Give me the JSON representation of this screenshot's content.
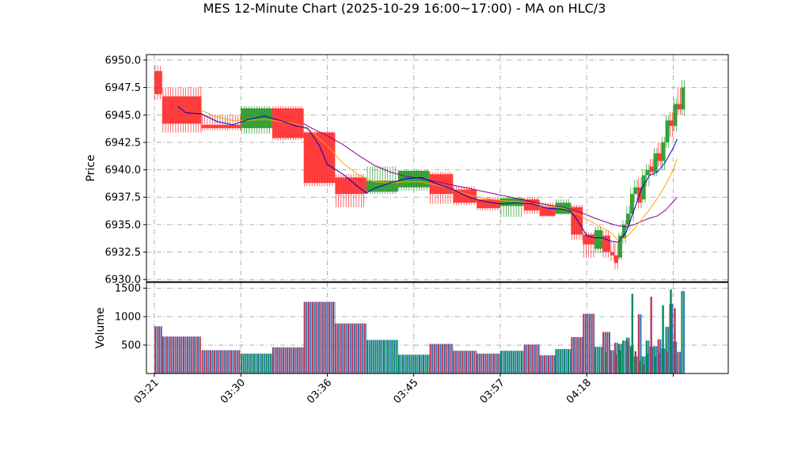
{
  "chart_data": {
    "type": "candlestick",
    "title": "MES 12-Minute Chart (2025-10-29 16:00~17:00) - MA on HLC/3",
    "price_panel": {
      "ylabel": "Price",
      "ylim": [
        6929.8,
        6950.5
      ],
      "yticks": [
        "6930.0",
        "6932.5",
        "6935.0",
        "6937.5",
        "6940.0",
        "6942.5",
        "6945.0",
        "6947.5",
        "6950.0"
      ]
    },
    "volume_panel": {
      "ylabel": "Volume",
      "ylim": [
        0,
        1600
      ],
      "yticks": [
        "500",
        "1000",
        "1500"
      ]
    },
    "xlim": [
      -1,
      73
    ],
    "xticks": [
      {
        "label": "03:21",
        "index": 0
      },
      {
        "label": "03:30",
        "index": 11
      },
      {
        "label": "03:36",
        "index": 22
      },
      {
        "label": "03:45",
        "index": 33
      },
      {
        "label": "03:57",
        "index": 44
      },
      {
        "label": "04:18",
        "index": 55
      },
      {
        "label": "",
        "index": 66
      }
    ],
    "grid": true,
    "colors": {
      "up": "#2a9a2a",
      "down": "#ff3030",
      "ma_fast": "#0000cc",
      "ma_mid": "#ffa500",
      "ma_slow": "#8b008b",
      "volume_up": "#008a5a",
      "volume_down": "#b23a5a",
      "grid": "#b0b0b0"
    },
    "candles": [
      {
        "start": 0,
        "end": 1,
        "open": 6949.0,
        "high": 6949.5,
        "low": 6946.4,
        "close": 6946.9,
        "volume": 830
      },
      {
        "start": 1,
        "end": 6,
        "open": 6946.7,
        "high": 6947.5,
        "low": 6943.4,
        "close": 6944.2,
        "volume": 650
      },
      {
        "start": 6,
        "end": 11,
        "open": 6944.1,
        "high": 6945.0,
        "low": 6943.6,
        "close": 6943.8,
        "volume": 410
      },
      {
        "start": 11,
        "end": 15,
        "open": 6943.8,
        "high": 6945.8,
        "low": 6943.3,
        "close": 6945.6,
        "volume": 350
      },
      {
        "start": 15,
        "end": 19,
        "open": 6945.6,
        "high": 6945.8,
        "low": 6942.7,
        "close": 6942.9,
        "volume": 460
      },
      {
        "start": 19,
        "end": 23,
        "open": 6943.4,
        "high": 6943.5,
        "low": 6938.5,
        "close": 6938.8,
        "volume": 1260
      },
      {
        "start": 23,
        "end": 27,
        "open": 6939.3,
        "high": 6939.6,
        "low": 6936.6,
        "close": 6937.8,
        "volume": 880
      },
      {
        "start": 27,
        "end": 31,
        "open": 6938.0,
        "high": 6940.3,
        "low": 6937.8,
        "close": 6939.0,
        "volume": 590
      },
      {
        "start": 31,
        "end": 35,
        "open": 6938.4,
        "high": 6940.0,
        "low": 6938.1,
        "close": 6939.9,
        "volume": 330
      },
      {
        "start": 35,
        "end": 38,
        "open": 6939.6,
        "high": 6939.8,
        "low": 6936.9,
        "close": 6937.8,
        "volume": 520
      },
      {
        "start": 38,
        "end": 41,
        "open": 6938.2,
        "high": 6938.5,
        "low": 6936.8,
        "close": 6937.0,
        "volume": 400
      },
      {
        "start": 41,
        "end": 44,
        "open": 6937.3,
        "high": 6937.5,
        "low": 6936.3,
        "close": 6936.5,
        "volume": 350
      },
      {
        "start": 44,
        "end": 47,
        "open": 6936.7,
        "high": 6937.5,
        "low": 6935.7,
        "close": 6937.4,
        "volume": 400
      },
      {
        "start": 47,
        "end": 49,
        "open": 6937.3,
        "high": 6937.5,
        "low": 6936.0,
        "close": 6936.3,
        "volume": 510
      },
      {
        "start": 49,
        "end": 51,
        "open": 6936.6,
        "high": 6937.0,
        "low": 6935.7,
        "close": 6935.8,
        "volume": 320
      },
      {
        "start": 51,
        "end": 53,
        "open": 6936.0,
        "high": 6937.3,
        "low": 6935.9,
        "close": 6937.0,
        "volume": 430
      },
      {
        "start": 53,
        "end": 54.5,
        "open": 6936.6,
        "high": 6936.8,
        "low": 6933.6,
        "close": 6934.1,
        "volume": 640
      },
      {
        "start": 54.5,
        "end": 56,
        "open": 6934.1,
        "high": 6934.3,
        "low": 6932.0,
        "close": 6933.2,
        "volume": 1050
      },
      {
        "start": 56,
        "end": 57,
        "open": 6932.8,
        "high": 6934.8,
        "low": 6932.4,
        "close": 6934.5,
        "volume": 470
      },
      {
        "start": 57,
        "end": 58,
        "open": 6934.0,
        "high": 6934.5,
        "low": 6932.0,
        "close": 6932.5,
        "volume": 730
      },
      {
        "start": 58,
        "end": 58.5,
        "open": 6932.5,
        "high": 6933.5,
        "low": 6931.7,
        "close": 6932.2,
        "volume": 410
      },
      {
        "start": 58.5,
        "end": 59,
        "open": 6932.2,
        "high": 6933.3,
        "low": 6930.9,
        "close": 6931.5,
        "volume": 540
      },
      {
        "start": 59,
        "end": 59.5,
        "open": 6932.0,
        "high": 6934.3,
        "low": 6931.8,
        "close": 6934.0,
        "volume": 520
      },
      {
        "start": 59.5,
        "end": 60,
        "open": 6933.8,
        "high": 6935.4,
        "low": 6933.3,
        "close": 6935.0,
        "volume": 580
      },
      {
        "start": 60,
        "end": 60.5,
        "open": 6935.0,
        "high": 6936.7,
        "low": 6934.5,
        "close": 6936.0,
        "volume": 630
      },
      {
        "start": 60.5,
        "end": 61,
        "open": 6936.0,
        "high": 6938.4,
        "low": 6935.3,
        "close": 6937.8,
        "volume": 480
      },
      {
        "start": 61,
        "end": 61.5,
        "open": 6937.8,
        "high": 6939.1,
        "low": 6937.0,
        "close": 6938.4,
        "volume": 300
      },
      {
        "start": 61.5,
        "end": 62,
        "open": 6938.4,
        "high": 6939.3,
        "low": 6936.5,
        "close": 6937.0,
        "volume": 1040
      },
      {
        "start": 62,
        "end": 62.5,
        "open": 6937.3,
        "high": 6940.0,
        "low": 6937.0,
        "close": 6939.5,
        "volume": 300
      },
      {
        "start": 62.5,
        "end": 63,
        "open": 6939.5,
        "high": 6940.5,
        "low": 6938.5,
        "close": 6940.0,
        "volume": 580
      },
      {
        "start": 63,
        "end": 63.5,
        "open": 6940.3,
        "high": 6941.0,
        "low": 6939.5,
        "close": 6939.8,
        "volume": 470
      },
      {
        "start": 63.5,
        "end": 64,
        "open": 6939.8,
        "high": 6942.0,
        "low": 6939.4,
        "close": 6941.5,
        "volume": 480
      },
      {
        "start": 64,
        "end": 64.5,
        "open": 6941.5,
        "high": 6942.5,
        "low": 6940.3,
        "close": 6940.8,
        "volume": 600
      },
      {
        "start": 64.5,
        "end": 65,
        "open": 6940.8,
        "high": 6943.0,
        "low": 6940.0,
        "close": 6942.5,
        "volume": 440
      },
      {
        "start": 65,
        "end": 65.5,
        "open": 6942.5,
        "high": 6945.0,
        "low": 6942.0,
        "close": 6944.5,
        "volume": 820
      },
      {
        "start": 65.5,
        "end": 66,
        "open": 6944.5,
        "high": 6945.3,
        "low": 6943.0,
        "close": 6944.0,
        "volume": 1220
      },
      {
        "start": 66,
        "end": 66.5,
        "open": 6944.0,
        "high": 6946.5,
        "low": 6943.5,
        "close": 6946.0,
        "volume": 560
      },
      {
        "start": 66.5,
        "end": 67,
        "open": 6946.0,
        "high": 6947.5,
        "low": 6945.0,
        "close": 6945.5,
        "volume": 380
      },
      {
        "start": 67,
        "end": 67.5,
        "open": 6945.5,
        "high": 6948.2,
        "low": 6945.0,
        "close": 6947.5,
        "volume": 1450
      }
    ],
    "volume_fillers": [
      {
        "x": 57.4,
        "volume": 380
      },
      {
        "x": 58.7,
        "volume": 330
      },
      {
        "x": 59.3,
        "volume": 410
      },
      {
        "x": 60.2,
        "volume": 560
      },
      {
        "x": 60.8,
        "volume": 1400
      },
      {
        "x": 61.2,
        "volume": 390
      },
      {
        "x": 61.8,
        "volume": 220
      },
      {
        "x": 62.2,
        "volume": 160
      },
      {
        "x": 62.7,
        "volume": 340
      },
      {
        "x": 63.2,
        "volume": 1350
      },
      {
        "x": 63.7,
        "volume": 300
      },
      {
        "x": 64.2,
        "volume": 360
      },
      {
        "x": 64.7,
        "volume": 1200
      },
      {
        "x": 65.2,
        "volume": 380
      },
      {
        "x": 65.7,
        "volume": 1480
      },
      {
        "x": 66.2,
        "volume": 1150
      }
    ],
    "ma_fast": [
      [
        3,
        6945.8
      ],
      [
        4,
        6945.2
      ],
      [
        6,
        6945.1
      ],
      [
        8,
        6944.4
      ],
      [
        10,
        6944.1
      ],
      [
        12,
        6944.6
      ],
      [
        14,
        6944.9
      ],
      [
        16,
        6944.5
      ],
      [
        18,
        6944.0
      ],
      [
        19.5,
        6943.8
      ],
      [
        21,
        6942.2
      ],
      [
        22,
        6940.5
      ],
      [
        24,
        6939.6
      ],
      [
        26,
        6938.4
      ],
      [
        27,
        6937.9
      ],
      [
        28,
        6938.3
      ],
      [
        30,
        6938.8
      ],
      [
        32,
        6939.2
      ],
      [
        34,
        6939.3
      ],
      [
        36,
        6938.7
      ],
      [
        38,
        6938.2
      ],
      [
        40,
        6937.5
      ],
      [
        42,
        6937.1
      ],
      [
        44,
        6936.9
      ],
      [
        46,
        6937.0
      ],
      [
        48,
        6936.9
      ],
      [
        50,
        6936.5
      ],
      [
        52,
        6936.4
      ],
      [
        53,
        6936.2
      ],
      [
        54,
        6935.2
      ],
      [
        55,
        6934.0
      ],
      [
        56,
        6933.8
      ],
      [
        57,
        6933.8
      ],
      [
        58,
        6933.5
      ],
      [
        59,
        6933.4
      ],
      [
        60,
        6934.3
      ],
      [
        61,
        6936.3
      ],
      [
        62,
        6938.3
      ],
      [
        63,
        6939.5
      ],
      [
        64,
        6939.8
      ],
      [
        65,
        6940.7
      ],
      [
        66,
        6942.0
      ],
      [
        66.5,
        6942.8
      ]
    ],
    "ma_mid": [
      [
        6,
        6945.4
      ],
      [
        8,
        6944.8
      ],
      [
        10,
        6944.5
      ],
      [
        12,
        6944.5
      ],
      [
        14,
        6944.6
      ],
      [
        16,
        6944.4
      ],
      [
        18,
        6944.2
      ],
      [
        20,
        6943.5
      ],
      [
        22,
        6942.2
      ],
      [
        24,
        6940.6
      ],
      [
        26,
        6939.5
      ],
      [
        28,
        6938.9
      ],
      [
        30,
        6938.8
      ],
      [
        32,
        6938.9
      ],
      [
        34,
        6938.9
      ],
      [
        36,
        6938.6
      ],
      [
        38,
        6938.2
      ],
      [
        40,
        6937.7
      ],
      [
        42,
        6937.4
      ],
      [
        44,
        6937.2
      ],
      [
        46,
        6937.1
      ],
      [
        48,
        6936.9
      ],
      [
        50,
        6936.7
      ],
      [
        52,
        6936.5
      ],
      [
        54,
        6935.9
      ],
      [
        56,
        6935.1
      ],
      [
        58,
        6934.3
      ],
      [
        59,
        6933.6
      ],
      [
        60,
        6933.8
      ],
      [
        61,
        6934.6
      ],
      [
        62,
        6935.5
      ],
      [
        63,
        6936.4
      ],
      [
        64,
        6937.4
      ],
      [
        65,
        6938.6
      ],
      [
        66,
        6940.0
      ],
      [
        66.5,
        6941.0
      ]
    ],
    "ma_slow": [
      [
        19,
        6944.2
      ],
      [
        20,
        6943.8
      ],
      [
        22,
        6943.1
      ],
      [
        24,
        6942.3
      ],
      [
        26,
        6941.3
      ],
      [
        28,
        6940.4
      ],
      [
        30,
        6939.8
      ],
      [
        32,
        6939.4
      ],
      [
        34,
        6939.2
      ],
      [
        36,
        6938.9
      ],
      [
        38,
        6938.6
      ],
      [
        40,
        6938.3
      ],
      [
        42,
        6938.0
      ],
      [
        44,
        6937.7
      ],
      [
        46,
        6937.4
      ],
      [
        48,
        6937.1
      ],
      [
        50,
        6936.8
      ],
      [
        52,
        6936.6
      ],
      [
        54,
        6936.2
      ],
      [
        56,
        6935.6
      ],
      [
        58,
        6935.1
      ],
      [
        59,
        6934.9
      ],
      [
        60,
        6934.8
      ],
      [
        61,
        6935.0
      ],
      [
        62,
        6935.3
      ],
      [
        63,
        6935.6
      ],
      [
        64,
        6935.8
      ],
      [
        65,
        6936.3
      ],
      [
        66,
        6937.1
      ],
      [
        66.5,
        6937.5
      ]
    ]
  }
}
